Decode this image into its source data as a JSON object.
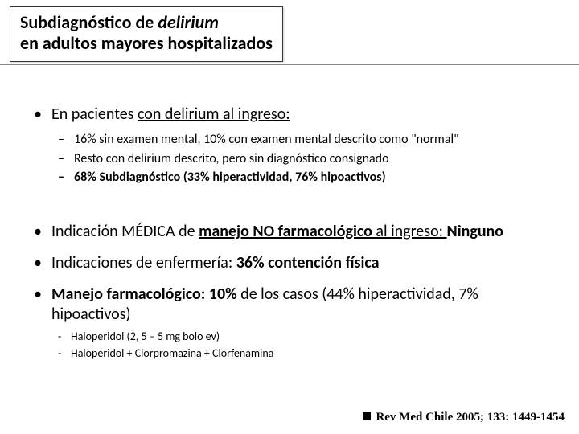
{
  "title": {
    "line1_a": "Subdiagnóstico de ",
    "line1_b": "delirium",
    "line2": "en adultos mayores hospitalizados"
  },
  "bullets": {
    "b1_a": "En pacientes ",
    "b1_b": "con delirium al ingreso:",
    "b1_sub": [
      "16% sin examen mental, 10% con examen mental descrito como \"normal\"",
      "Resto con delirium descrito, pero sin diagnóstico consignado",
      "68% Subdiagnóstico (33% hiperactividad, 76% hipoactivos)"
    ],
    "b2_a": "Indicación MÉDICA de ",
    "b2_b": "manejo NO farmacológico",
    "b2_c": " al ingreso: ",
    "b2_d": "Ninguno",
    "b3_a": "Indicaciones de enfermería:   ",
    "b3_b": "36% contención física",
    "b4_a": "Manejo farmacológico: 10% ",
    "b4_b": "de los casos (44% hiperactividad, 7% hipoactivos)",
    "b4_sub": [
      "Haloperidol (2, 5 – 5 mg bolo ev)",
      "Haloperidol + Clorpromazina + Clorfenamina"
    ]
  },
  "citation": "Rev Med Chile 2005; 133: 1449-1454"
}
